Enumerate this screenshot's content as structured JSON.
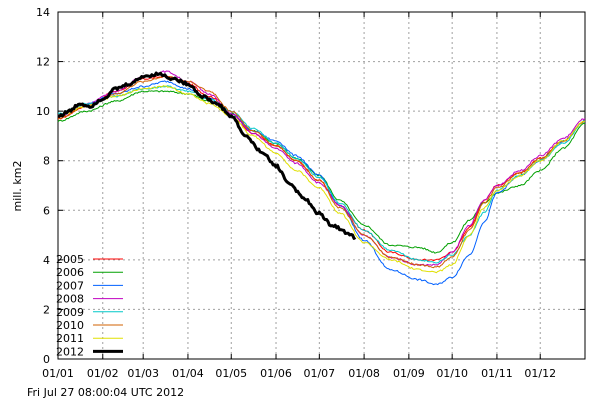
{
  "chart_data": {
    "type": "line",
    "ylabel": "mill. km2",
    "ylim": [
      0,
      14
    ],
    "yticks": [
      0,
      2,
      4,
      6,
      8,
      10,
      12,
      14
    ],
    "xlim": [
      0,
      365
    ],
    "xticks": [
      {
        "x": 0,
        "label": "01/01"
      },
      {
        "x": 31,
        "label": "01/02"
      },
      {
        "x": 59,
        "label": "01/03"
      },
      {
        "x": 90,
        "label": "01/04"
      },
      {
        "x": 120,
        "label": "01/05"
      },
      {
        "x": 151,
        "label": "01/06"
      },
      {
        "x": 181,
        "label": "01/07"
      },
      {
        "x": 212,
        "label": "01/08"
      },
      {
        "x": 243,
        "label": "01/09"
      },
      {
        "x": 273,
        "label": "01/10"
      },
      {
        "x": 304,
        "label": "01/11"
      },
      {
        "x": 334,
        "label": "01/12"
      }
    ],
    "grid": true,
    "legend_position": "bottom-left",
    "timestamp": "Fri Jul 27 08:00:04 UTC 2012",
    "series": [
      {
        "name": "2005",
        "color": "#ff0000",
        "width": 1,
        "points": [
          [
            0,
            9.7
          ],
          [
            20,
            10.2
          ],
          [
            40,
            10.8
          ],
          [
            59,
            11.3
          ],
          [
            75,
            11.4
          ],
          [
            90,
            11.1
          ],
          [
            105,
            10.6
          ],
          [
            120,
            9.9
          ],
          [
            135,
            9.1
          ],
          [
            151,
            8.6
          ],
          [
            165,
            8.0
          ],
          [
            181,
            7.2
          ],
          [
            195,
            6.2
          ],
          [
            212,
            5.2
          ],
          [
            230,
            4.3
          ],
          [
            250,
            4.0
          ],
          [
            262,
            4.0
          ],
          [
            273,
            4.3
          ],
          [
            285,
            5.3
          ],
          [
            295,
            6.4
          ],
          [
            304,
            7.0
          ],
          [
            320,
            7.5
          ],
          [
            334,
            8.1
          ],
          [
            350,
            8.8
          ],
          [
            365,
            9.6
          ]
        ]
      },
      {
        "name": "2006",
        "color": "#00a000",
        "width": 1,
        "points": [
          [
            0,
            9.6
          ],
          [
            20,
            10.0
          ],
          [
            40,
            10.4
          ],
          [
            59,
            10.8
          ],
          [
            75,
            10.8
          ],
          [
            90,
            10.7
          ],
          [
            105,
            10.4
          ],
          [
            120,
            9.9
          ],
          [
            135,
            9.2
          ],
          [
            151,
            8.7
          ],
          [
            165,
            8.1
          ],
          [
            181,
            7.4
          ],
          [
            195,
            6.4
          ],
          [
            212,
            5.4
          ],
          [
            230,
            4.6
          ],
          [
            250,
            4.5
          ],
          [
            262,
            4.3
          ],
          [
            273,
            4.7
          ],
          [
            285,
            5.6
          ],
          [
            295,
            6.3
          ],
          [
            304,
            6.7
          ],
          [
            320,
            7.0
          ],
          [
            334,
            7.6
          ],
          [
            350,
            8.5
          ],
          [
            365,
            9.5
          ]
        ]
      },
      {
        "name": "2007",
        "color": "#0060ff",
        "width": 1,
        "points": [
          [
            0,
            9.8
          ],
          [
            20,
            10.3
          ],
          [
            40,
            10.7
          ],
          [
            59,
            11.0
          ],
          [
            75,
            11.2
          ],
          [
            90,
            10.9
          ],
          [
            105,
            10.5
          ],
          [
            120,
            9.9
          ],
          [
            135,
            9.2
          ],
          [
            151,
            8.8
          ],
          [
            165,
            8.2
          ],
          [
            181,
            7.4
          ],
          [
            195,
            6.2
          ],
          [
            212,
            4.8
          ],
          [
            230,
            3.6
          ],
          [
            250,
            3.2
          ],
          [
            262,
            3.0
          ],
          [
            273,
            3.3
          ],
          [
            285,
            4.2
          ],
          [
            295,
            5.5
          ],
          [
            304,
            6.7
          ],
          [
            320,
            7.4
          ],
          [
            334,
            8.0
          ],
          [
            350,
            8.8
          ],
          [
            365,
            9.6
          ]
        ]
      },
      {
        "name": "2008",
        "color": "#c000c0",
        "width": 1,
        "points": [
          [
            0,
            9.8
          ],
          [
            20,
            10.3
          ],
          [
            40,
            10.8
          ],
          [
            59,
            11.4
          ],
          [
            75,
            11.6
          ],
          [
            90,
            11.2
          ],
          [
            105,
            10.7
          ],
          [
            120,
            9.9
          ],
          [
            135,
            9.1
          ],
          [
            151,
            8.5
          ],
          [
            165,
            7.9
          ],
          [
            181,
            7.1
          ],
          [
            195,
            6.2
          ],
          [
            212,
            5.0
          ],
          [
            230,
            4.1
          ],
          [
            250,
            3.8
          ],
          [
            262,
            3.8
          ],
          [
            273,
            4.3
          ],
          [
            285,
            5.4
          ],
          [
            295,
            6.4
          ],
          [
            304,
            7.0
          ],
          [
            320,
            7.6
          ],
          [
            334,
            8.2
          ],
          [
            350,
            8.9
          ],
          [
            365,
            9.7
          ]
        ]
      },
      {
        "name": "2009",
        "color": "#00c8c8",
        "width": 1,
        "points": [
          [
            0,
            9.9
          ],
          [
            20,
            10.3
          ],
          [
            40,
            10.6
          ],
          [
            59,
            10.9
          ],
          [
            75,
            11.0
          ],
          [
            90,
            10.8
          ],
          [
            105,
            10.5
          ],
          [
            120,
            10.0
          ],
          [
            135,
            9.3
          ],
          [
            151,
            8.7
          ],
          [
            165,
            8.1
          ],
          [
            181,
            7.3
          ],
          [
            195,
            6.3
          ],
          [
            212,
            5.2
          ],
          [
            230,
            4.4
          ],
          [
            250,
            4.0
          ],
          [
            262,
            3.9
          ],
          [
            273,
            4.2
          ],
          [
            285,
            5.0
          ],
          [
            295,
            5.9
          ],
          [
            304,
            6.8
          ],
          [
            320,
            7.4
          ],
          [
            334,
            8.0
          ],
          [
            350,
            8.7
          ],
          [
            365,
            9.6
          ]
        ]
      },
      {
        "name": "2010",
        "color": "#d06000",
        "width": 1,
        "points": [
          [
            0,
            9.7
          ],
          [
            20,
            10.2
          ],
          [
            40,
            10.7
          ],
          [
            59,
            11.2
          ],
          [
            75,
            11.4
          ],
          [
            90,
            11.2
          ],
          [
            105,
            10.8
          ],
          [
            120,
            10.0
          ],
          [
            135,
            9.2
          ],
          [
            151,
            8.6
          ],
          [
            165,
            8.0
          ],
          [
            181,
            7.2
          ],
          [
            195,
            6.1
          ],
          [
            212,
            5.0
          ],
          [
            230,
            4.1
          ],
          [
            250,
            3.8
          ],
          [
            262,
            3.7
          ],
          [
            273,
            4.1
          ],
          [
            285,
            5.2
          ],
          [
            295,
            6.3
          ],
          [
            304,
            6.9
          ],
          [
            320,
            7.5
          ],
          [
            334,
            8.1
          ],
          [
            350,
            8.8
          ],
          [
            365,
            9.6
          ]
        ]
      },
      {
        "name": "2011",
        "color": "#e0e000",
        "width": 1,
        "points": [
          [
            0,
            9.8
          ],
          [
            20,
            10.2
          ],
          [
            40,
            10.6
          ],
          [
            59,
            10.9
          ],
          [
            75,
            11.0
          ],
          [
            90,
            10.7
          ],
          [
            105,
            10.3
          ],
          [
            120,
            9.8
          ],
          [
            135,
            9.0
          ],
          [
            151,
            8.3
          ],
          [
            165,
            7.6
          ],
          [
            181,
            6.9
          ],
          [
            195,
            5.9
          ],
          [
            212,
            4.7
          ],
          [
            230,
            4.0
          ],
          [
            250,
            3.6
          ],
          [
            262,
            3.5
          ],
          [
            273,
            3.8
          ],
          [
            285,
            5.0
          ],
          [
            295,
            6.1
          ],
          [
            304,
            6.8
          ],
          [
            320,
            7.4
          ],
          [
            334,
            8.0
          ],
          [
            350,
            8.8
          ],
          [
            365,
            9.6
          ]
        ]
      },
      {
        "name": "2012",
        "color": "#000000",
        "width": 3,
        "points": [
          [
            0,
            9.8
          ],
          [
            8,
            10.0
          ],
          [
            15,
            10.3
          ],
          [
            22,
            10.2
          ],
          [
            31,
            10.5
          ],
          [
            40,
            10.9
          ],
          [
            50,
            11.1
          ],
          [
            59,
            11.4
          ],
          [
            70,
            11.5
          ],
          [
            80,
            11.3
          ],
          [
            90,
            11.1
          ],
          [
            100,
            10.6
          ],
          [
            110,
            10.3
          ],
          [
            120,
            9.8
          ],
          [
            130,
            9.0
          ],
          [
            140,
            8.4
          ],
          [
            151,
            7.8
          ],
          [
            160,
            7.1
          ],
          [
            170,
            6.5
          ],
          [
            180,
            5.9
          ],
          [
            190,
            5.4
          ],
          [
            200,
            5.1
          ],
          [
            206,
            4.9
          ]
        ]
      }
    ]
  }
}
